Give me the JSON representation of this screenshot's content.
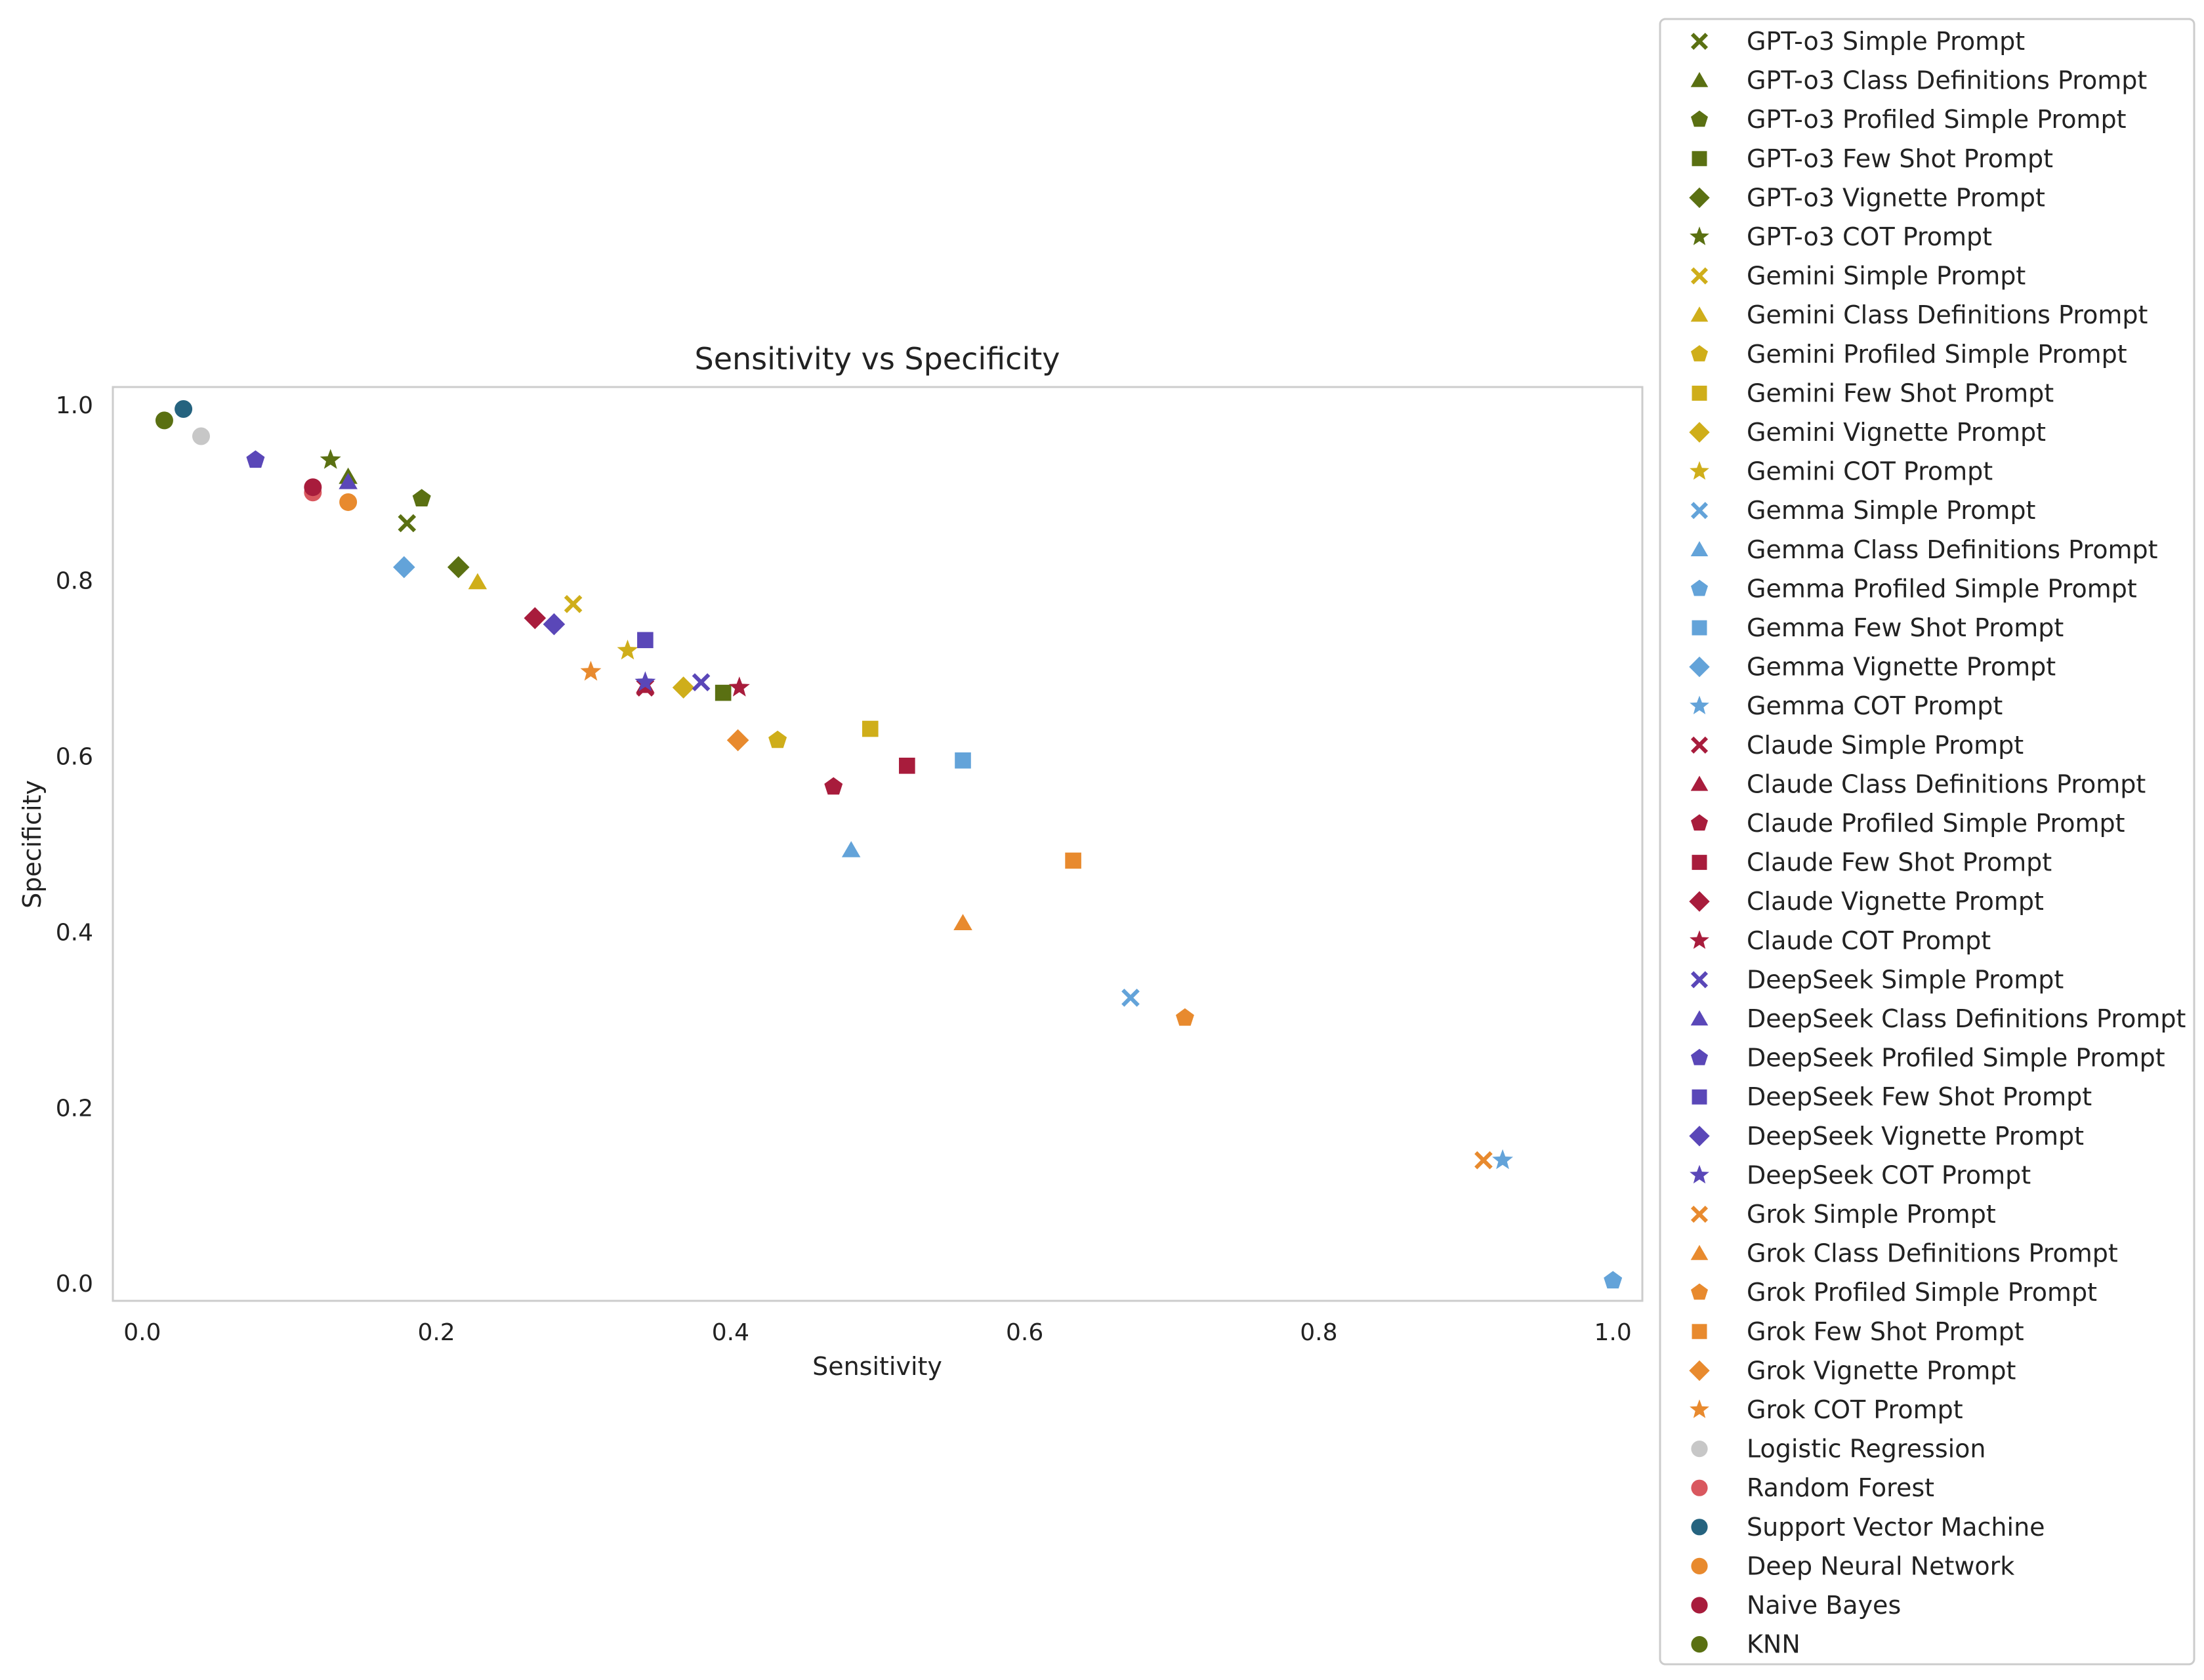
{
  "chart_data": {
    "type": "scatter",
    "title": "Sensitivity vs Specificity",
    "xlabel": "Sensitivity",
    "ylabel": "Specificity",
    "xlim": [
      -0.02,
      1.02
    ],
    "ylim": [
      -0.02,
      1.02
    ],
    "xticks": [
      0.0,
      0.2,
      0.4,
      0.6,
      0.8,
      1.0
    ],
    "yticks": [
      0.0,
      0.2,
      0.4,
      0.6,
      0.8,
      1.0
    ],
    "xtick_labels": [
      "0.0",
      "0.2",
      "0.4",
      "0.6",
      "0.8",
      "1.0"
    ],
    "ytick_labels": [
      "0.0",
      "0.2",
      "0.4",
      "0.6",
      "0.8",
      "1.0"
    ],
    "grid": false,
    "legend_position": "outside-right",
    "colors": {
      "GPT-o3": "#5a7012",
      "Gemini": "#cfae1a",
      "Gemma": "#63a3d9",
      "Claude": "#a81c3c",
      "DeepSeek": "#5a47b8",
      "Grok": "#e88a2e",
      "Logistic Regression": "#c7c7c7",
      "Random Forest": "#d9585f",
      "Support Vector Machine": "#25637f",
      "Deep Neural Network": "#e88a2e",
      "Naive Bayes": "#a81c3c",
      "KNN": "#5a7012"
    },
    "series": [
      {
        "name": "GPT-o3 Simple Prompt",
        "color": "#5a7012",
        "marker": "x",
        "x": [
          0.18
        ],
        "y": [
          0.865
        ]
      },
      {
        "name": "GPT-o3 Class Definitions Prompt",
        "color": "#5a7012",
        "marker": "triangle",
        "x": [
          0.14
        ],
        "y": [
          0.918
        ]
      },
      {
        "name": "GPT-o3 Profiled Simple Prompt",
        "color": "#5a7012",
        "marker": "pentagon",
        "x": [
          0.19
        ],
        "y": [
          0.893
        ]
      },
      {
        "name": "GPT-o3 Few Shot Prompt",
        "color": "#5a7012",
        "marker": "square",
        "x": [
          0.395
        ],
        "y": [
          0.672
        ]
      },
      {
        "name": "GPT-o3 Vignette Prompt",
        "color": "#5a7012",
        "marker": "diamond",
        "x": [
          0.215
        ],
        "y": [
          0.815
        ]
      },
      {
        "name": "GPT-o3 COT Prompt",
        "color": "#5a7012",
        "marker": "star",
        "x": [
          0.128
        ],
        "y": [
          0.937
        ]
      },
      {
        "name": "Gemini Simple Prompt",
        "color": "#cfae1a",
        "marker": "x",
        "x": [
          0.293
        ],
        "y": [
          0.773
        ]
      },
      {
        "name": "Gemini Class Definitions Prompt",
        "color": "#cfae1a",
        "marker": "triangle",
        "x": [
          0.228
        ],
        "y": [
          0.798
        ]
      },
      {
        "name": "Gemini Profiled Simple Prompt",
        "color": "#cfae1a",
        "marker": "pentagon",
        "x": [
          0.432
        ],
        "y": [
          0.618
        ]
      },
      {
        "name": "Gemini Few Shot Prompt",
        "color": "#cfae1a",
        "marker": "square",
        "x": [
          0.495
        ],
        "y": [
          0.631
        ]
      },
      {
        "name": "Gemini Vignette Prompt",
        "color": "#cfae1a",
        "marker": "diamond",
        "x": [
          0.368
        ],
        "y": [
          0.678
        ]
      },
      {
        "name": "Gemini COT Prompt",
        "color": "#cfae1a",
        "marker": "star",
        "x": [
          0.33
        ],
        "y": [
          0.72
        ]
      },
      {
        "name": "Gemma Simple Prompt",
        "color": "#63a3d9",
        "marker": "x",
        "x": [
          0.672
        ],
        "y": [
          0.325
        ]
      },
      {
        "name": "Gemma Class Definitions Prompt",
        "color": "#63a3d9",
        "marker": "triangle",
        "x": [
          0.482
        ],
        "y": [
          0.493
        ]
      },
      {
        "name": "Gemma Profiled Simple Prompt",
        "color": "#63a3d9",
        "marker": "pentagon",
        "x": [
          1.0
        ],
        "y": [
          0.003
        ]
      },
      {
        "name": "Gemma Few Shot Prompt",
        "color": "#63a3d9",
        "marker": "square",
        "x": [
          0.558
        ],
        "y": [
          0.595
        ]
      },
      {
        "name": "Gemma Vignette Prompt",
        "color": "#63a3d9",
        "marker": "diamond",
        "x": [
          0.178
        ],
        "y": [
          0.815
        ]
      },
      {
        "name": "Gemma COT Prompt",
        "color": "#63a3d9",
        "marker": "star",
        "x": [
          0.925
        ],
        "y": [
          0.14
        ]
      },
      {
        "name": "Claude Simple Prompt",
        "color": "#a81c3c",
        "marker": "x",
        "x": [
          0.342
        ],
        "y": [
          0.678
        ]
      },
      {
        "name": "Claude Class Definitions Prompt",
        "color": "#a81c3c",
        "marker": "triangle",
        "x": [
          0.342
        ],
        "y": [
          0.68
        ]
      },
      {
        "name": "Claude Profiled Simple Prompt",
        "color": "#a81c3c",
        "marker": "pentagon",
        "x": [
          0.47
        ],
        "y": [
          0.565
        ]
      },
      {
        "name": "Claude Few Shot Prompt",
        "color": "#a81c3c",
        "marker": "square",
        "x": [
          0.52
        ],
        "y": [
          0.589
        ]
      },
      {
        "name": "Claude Vignette Prompt",
        "color": "#a81c3c",
        "marker": "diamond",
        "x": [
          0.267
        ],
        "y": [
          0.757
        ]
      },
      {
        "name": "Claude COT Prompt",
        "color": "#a81c3c",
        "marker": "star",
        "x": [
          0.406
        ],
        "y": [
          0.678
        ]
      },
      {
        "name": "DeepSeek Simple Prompt",
        "color": "#5a47b8",
        "marker": "x",
        "x": [
          0.38
        ],
        "y": [
          0.684
        ]
      },
      {
        "name": "DeepSeek Class Definitions Prompt",
        "color": "#5a47b8",
        "marker": "triangle",
        "x": [
          0.14
        ],
        "y": [
          0.912
        ]
      },
      {
        "name": "DeepSeek Profiled Simple Prompt",
        "color": "#5a47b8",
        "marker": "pentagon",
        "x": [
          0.077
        ],
        "y": [
          0.937
        ]
      },
      {
        "name": "DeepSeek Few Shot Prompt",
        "color": "#5a47b8",
        "marker": "square",
        "x": [
          0.342
        ],
        "y": [
          0.732
        ]
      },
      {
        "name": "DeepSeek Vignette Prompt",
        "color": "#5a47b8",
        "marker": "diamond",
        "x": [
          0.28
        ],
        "y": [
          0.75
        ]
      },
      {
        "name": "DeepSeek COT Prompt",
        "color": "#5a47b8",
        "marker": "star",
        "x": [
          0.342
        ],
        "y": [
          0.684
        ]
      },
      {
        "name": "Grok Simple Prompt",
        "color": "#e88a2e",
        "marker": "x",
        "x": [
          0.912
        ],
        "y": [
          0.14
        ]
      },
      {
        "name": "Grok Class Definitions Prompt",
        "color": "#e88a2e",
        "marker": "triangle",
        "x": [
          0.558
        ],
        "y": [
          0.41
        ]
      },
      {
        "name": "Grok Profiled Simple Prompt",
        "color": "#e88a2e",
        "marker": "pentagon",
        "x": [
          0.709
        ],
        "y": [
          0.302
        ]
      },
      {
        "name": "Grok Few Shot Prompt",
        "color": "#e88a2e",
        "marker": "square",
        "x": [
          0.633
        ],
        "y": [
          0.481
        ]
      },
      {
        "name": "Grok Vignette Prompt",
        "color": "#e88a2e",
        "marker": "diamond",
        "x": [
          0.405
        ],
        "y": [
          0.618
        ]
      },
      {
        "name": "Grok COT Prompt",
        "color": "#e88a2e",
        "marker": "star",
        "x": [
          0.305
        ],
        "y": [
          0.696
        ]
      },
      {
        "name": "Logistic Regression",
        "color": "#c7c7c7",
        "marker": "circle",
        "x": [
          0.04
        ],
        "y": [
          0.964
        ]
      },
      {
        "name": "Random Forest",
        "color": "#d9585f",
        "marker": "circle",
        "x": [
          0.116
        ],
        "y": [
          0.9
        ]
      },
      {
        "name": "Support Vector Machine",
        "color": "#25637f",
        "marker": "circle",
        "x": [
          0.028
        ],
        "y": [
          0.995
        ]
      },
      {
        "name": "Deep Neural Network",
        "color": "#e88a2e",
        "marker": "circle",
        "x": [
          0.14
        ],
        "y": [
          0.889
        ]
      },
      {
        "name": "Naive Bayes",
        "color": "#a81c3c",
        "marker": "circle",
        "x": [
          0.116
        ],
        "y": [
          0.906
        ]
      },
      {
        "name": "KNN",
        "color": "#5a7012",
        "marker": "circle",
        "x": [
          0.015
        ],
        "y": [
          0.982
        ]
      }
    ]
  }
}
